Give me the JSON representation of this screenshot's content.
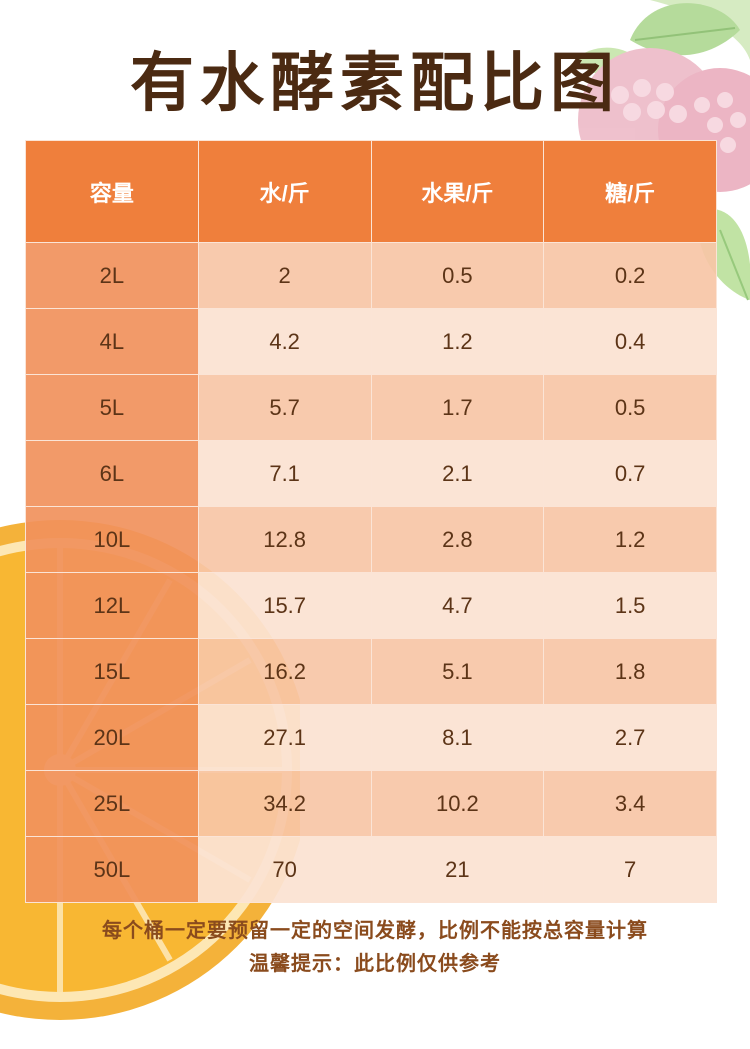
{
  "title": "有水酵素配比图",
  "table": {
    "headers": [
      "容量",
      "水/斤",
      "水果/斤",
      "糖/斤"
    ],
    "rows": [
      [
        "2L",
        "2",
        "0.5",
        "0.2"
      ],
      [
        "4L",
        "4.2",
        "1.2",
        "0.4"
      ],
      [
        "5L",
        "5.7",
        "1.7",
        "0.5"
      ],
      [
        "6L",
        "7.1",
        "2.1",
        "0.7"
      ],
      [
        "10L",
        "12.8",
        "2.8",
        "1.2"
      ],
      [
        "12L",
        "15.7",
        "4.7",
        "1.5"
      ],
      [
        "15L",
        "16.2",
        "5.1",
        "1.8"
      ],
      [
        "20L",
        "27.1",
        "8.1",
        "2.7"
      ],
      [
        "25L",
        "34.2",
        "10.2",
        "3.4"
      ],
      [
        "50L",
        "70",
        "21",
        "7"
      ]
    ]
  },
  "notes": {
    "line1": "每个桶一定要预留一定的空间发酵，比例不能按总容量计算",
    "line2": "温馨提示：此比例仅供参考"
  },
  "colors": {
    "header_bg": "#ef7f3c",
    "capacity_col_bg": "#f1915c",
    "row_odd_bg": "#f7c6a6",
    "row_even_bg": "#fbe2d2",
    "title_text": "#4b2a12",
    "body_text": "#5c3417",
    "note_text": "#8a4b1d"
  },
  "decor": [
    "raspberry-leaves-image",
    "orange-slice-image"
  ]
}
